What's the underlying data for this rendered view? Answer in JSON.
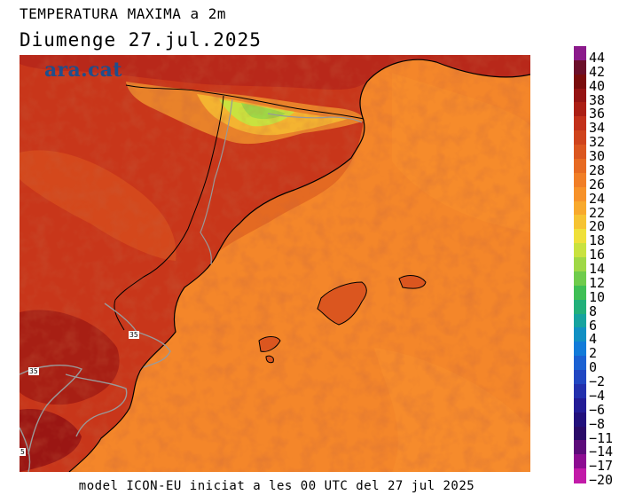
{
  "header": {
    "title": "TEMPERATURA MAXIMA a 2m",
    "date": "Diumenge  27.jul.2025"
  },
  "logo": {
    "text": "ara.cat"
  },
  "footer": {
    "text": "model ICON-EU iniciat a les 00 UTC del 27 jul 2025"
  },
  "map": {
    "isotherm_labels": [
      "35",
      "35",
      "5"
    ]
  },
  "colorbar": {
    "labels": [
      "44",
      "42",
      "40",
      "38",
      "36",
      "34",
      "32",
      "30",
      "28",
      "26",
      "24",
      "22",
      "20",
      "18",
      "16",
      "14",
      "12",
      "10",
      "8",
      "6",
      "4",
      "2",
      "0",
      "-2",
      "-4",
      "-6",
      "-8",
      "-11",
      "-14",
      "-17",
      "-20"
    ],
    "colors": [
      "#8b1a8b",
      "#6b0f2a",
      "#7a0c0c",
      "#951313",
      "#ab1e14",
      "#c2301a",
      "#cf431c",
      "#db561f",
      "#e76a22",
      "#f17e26",
      "#f79229",
      "#f8a92c",
      "#f6c332",
      "#efe03a",
      "#c9e23f",
      "#9fd846",
      "#6fcc4c",
      "#3fbf55",
      "#22b07a",
      "#16a39f",
      "#1190c3",
      "#127bd9",
      "#1b61d2",
      "#2147c2",
      "#2330ad",
      "#231c96",
      "#22107c",
      "#2a0a68",
      "#5c0b7a",
      "#8d0c92",
      "#c21aa8"
    ]
  }
}
